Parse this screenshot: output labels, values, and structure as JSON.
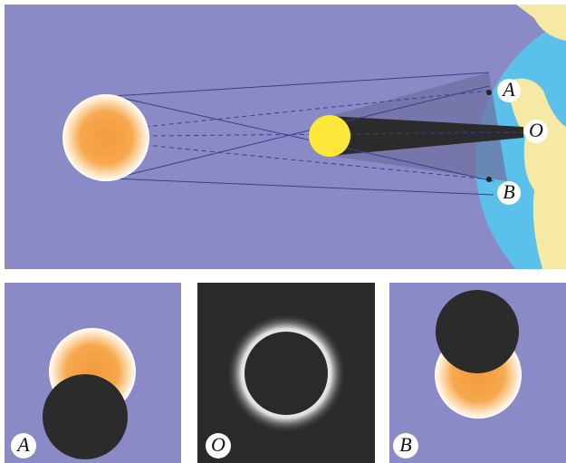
{
  "top_panel": {
    "labels": [
      "A",
      "O",
      "B"
    ]
  },
  "bottom_panels": [
    {
      "label": "A"
    },
    {
      "label": "O"
    },
    {
      "label": "B"
    }
  ]
}
